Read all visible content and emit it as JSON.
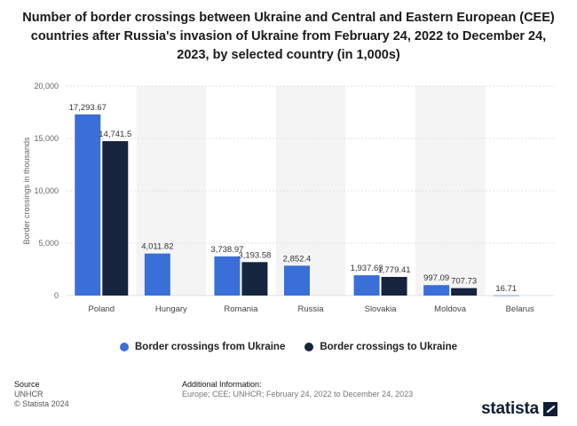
{
  "title": "Number of border crossings between Ukraine and Central and Eastern European (CEE) countries after Russia's invasion of Ukraine from February 24, 2022 to December 24, 2023, by selected country (in 1,000s)",
  "legend": {
    "from_label": "Border crossings from Ukraine",
    "to_label": "Border crossings to Ukraine"
  },
  "colors": {
    "from": "#3a6fd8",
    "to": "#16253d",
    "band": "#f4f4f5",
    "grid": "#e2e2e2"
  },
  "source": {
    "heading": "Source",
    "line1": "UNHCR",
    "line2": "© Statista 2024"
  },
  "additional_info": {
    "heading": "Additional Information:",
    "text": "Europe; CEE; UNHCR; February 24, 2022 to December 24, 2023"
  },
  "logo": {
    "text": "statista"
  },
  "chart_data": {
    "type": "bar",
    "ylabel": "Border crossings in thousands",
    "ylim": [
      0,
      20000
    ],
    "yticks": [
      0,
      5000,
      10000,
      15000,
      20000
    ],
    "ytick_labels": [
      "0",
      "5,000",
      "10,000",
      "15,000",
      "20,000"
    ],
    "grid": true,
    "legend_position": "bottom",
    "categories": [
      "Poland",
      "Hungary",
      "Romania",
      "Russia",
      "Slovakia",
      "Moldova",
      "Belarus"
    ],
    "series": [
      {
        "name": "Border crossings from Ukraine",
        "values": [
          17293.67,
          4011.82,
          3738.97,
          2852.4,
          1937.63,
          997.09,
          16.71
        ],
        "labels": [
          "17,293.67",
          "4,011.82",
          "3,738.97",
          "2,852.4",
          "1,937.63",
          "997.09",
          "16.71"
        ]
      },
      {
        "name": "Border crossings to Ukraine",
        "values": [
          14741.5,
          null,
          3193.58,
          null,
          1779.41,
          707.73,
          null
        ],
        "labels": [
          "14,741.5",
          "",
          "3,193.58",
          "",
          "1,779.41",
          "707.73",
          ""
        ]
      }
    ]
  }
}
